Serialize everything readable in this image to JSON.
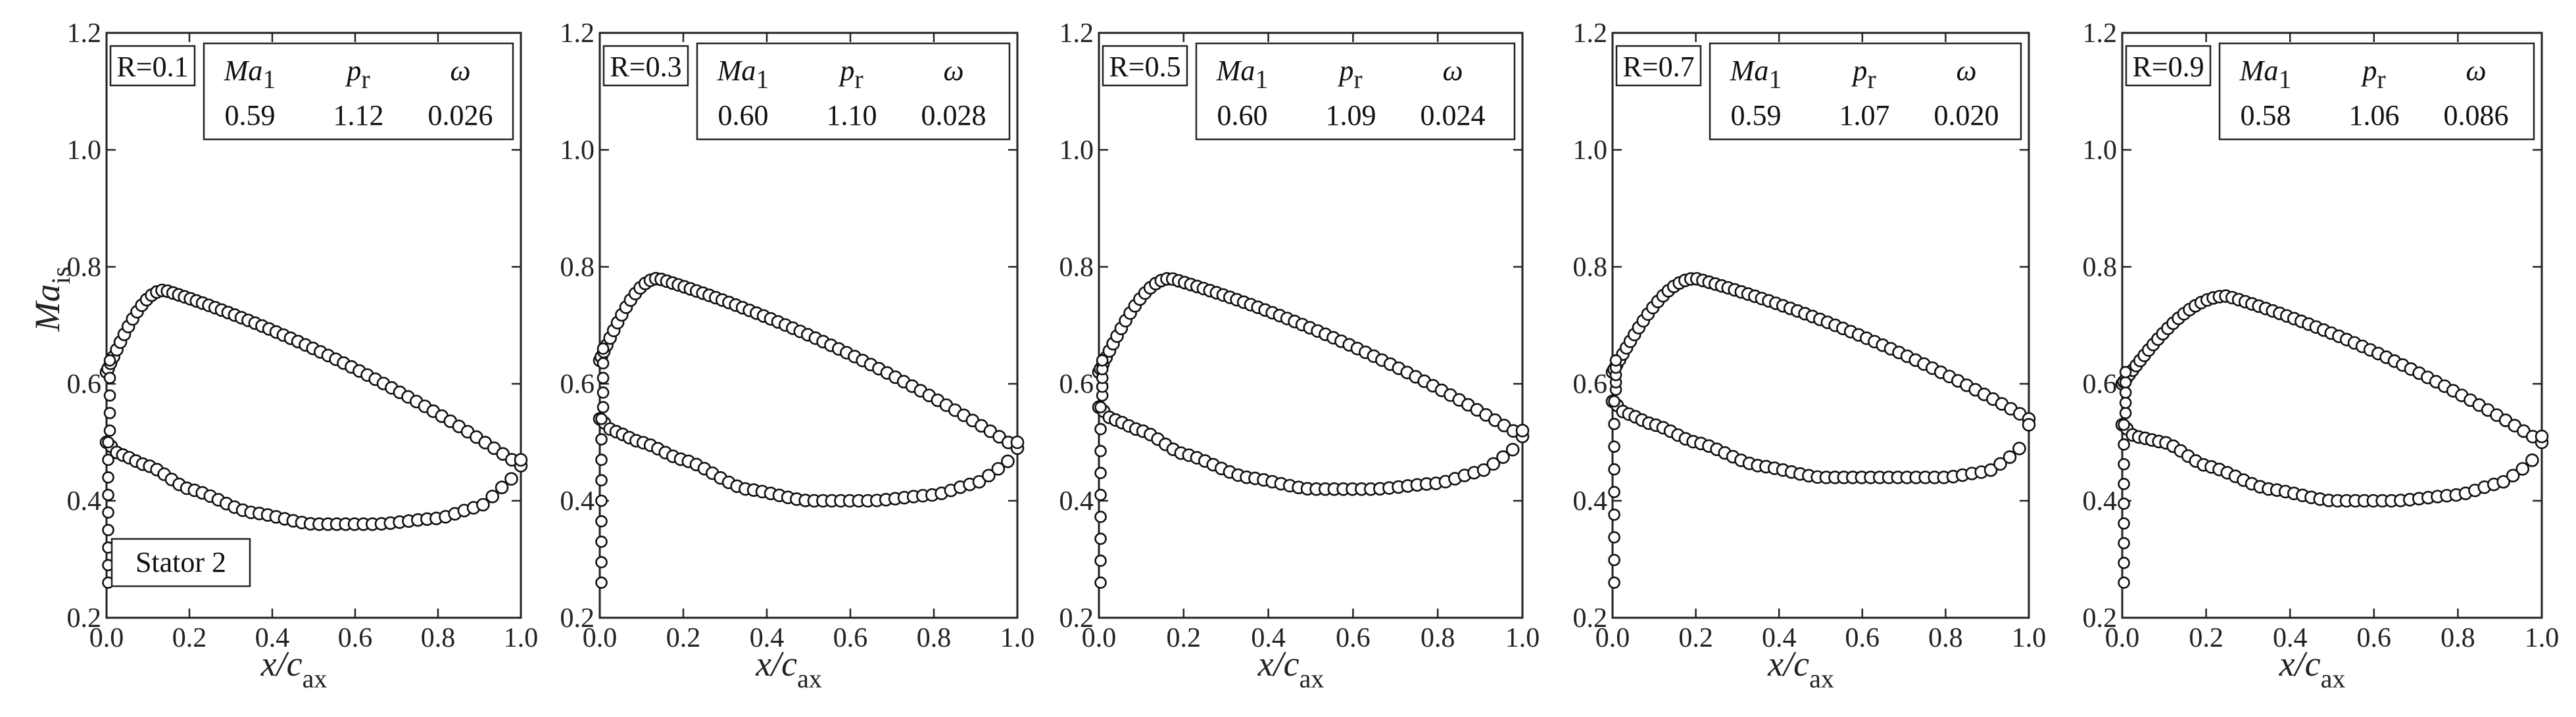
{
  "chart_data": [
    {
      "type": "scatter",
      "title": "R=0.1",
      "annotation": "Stator 2",
      "xlabel": "x/c_ax",
      "ylabel": "Ma_is",
      "xlim": [
        0.0,
        1.0
      ],
      "ylim": [
        0.2,
        1.2
      ],
      "xticks": [
        "0.0",
        "0.2",
        "0.4",
        "0.6",
        "0.8",
        "1.0"
      ],
      "yticks": [
        "0.2",
        "0.4",
        "0.6",
        "0.8",
        "1.0",
        "1.2"
      ],
      "table": {
        "headers": [
          "Ma1",
          "pr",
          "ω"
        ],
        "values": [
          "0.59",
          "1.12",
          "0.026"
        ]
      },
      "suction_peak": [
        0.14,
        0.76
      ],
      "suction_le": 0.62,
      "suction_te": 0.46,
      "pressure": [
        [
          0.0,
          0.5
        ],
        [
          0.03,
          0.48
        ],
        [
          0.1,
          0.46
        ],
        [
          0.2,
          0.42
        ],
        [
          0.35,
          0.38
        ],
        [
          0.5,
          0.36
        ],
        [
          0.65,
          0.36
        ],
        [
          0.8,
          0.37
        ],
        [
          0.9,
          0.39
        ],
        [
          0.97,
          0.43
        ],
        [
          1.0,
          0.47
        ]
      ]
    },
    {
      "type": "scatter",
      "title": "R=0.3",
      "xlabel": "x/c_ax",
      "ylabel": "",
      "xlim": [
        0.0,
        1.0
      ],
      "ylim": [
        0.2,
        1.2
      ],
      "xticks": [
        "0.0",
        "0.2",
        "0.4",
        "0.6",
        "0.8",
        "1.0"
      ],
      "yticks": [
        "0.2",
        "0.4",
        "0.6",
        "0.8",
        "1.0",
        "1.2"
      ],
      "table": {
        "headers": [
          "Ma1",
          "pr",
          "ω"
        ],
        "values": [
          "0.60",
          "1.10",
          "0.028"
        ]
      },
      "suction_peak": [
        0.14,
        0.78
      ],
      "suction_le": 0.64,
      "suction_te": 0.49,
      "pressure": [
        [
          0.0,
          0.54
        ],
        [
          0.03,
          0.52
        ],
        [
          0.1,
          0.5
        ],
        [
          0.2,
          0.47
        ],
        [
          0.35,
          0.42
        ],
        [
          0.5,
          0.4
        ],
        [
          0.65,
          0.4
        ],
        [
          0.8,
          0.41
        ],
        [
          0.9,
          0.43
        ],
        [
          0.97,
          0.46
        ],
        [
          1.0,
          0.5
        ]
      ]
    },
    {
      "type": "scatter",
      "title": "R=0.5",
      "xlabel": "x/c_ax",
      "ylabel": "",
      "xlim": [
        0.0,
        1.0
      ],
      "ylim": [
        0.2,
        1.2
      ],
      "xticks": [
        "0.0",
        "0.2",
        "0.4",
        "0.6",
        "0.8",
        "1.0"
      ],
      "yticks": [
        "0.2",
        "0.4",
        "0.6",
        "0.8",
        "1.0",
        "1.2"
      ],
      "table": {
        "headers": [
          "Ma1",
          "pr",
          "ω"
        ],
        "values": [
          "0.60",
          "1.09",
          "0.024"
        ]
      },
      "suction_peak": [
        0.17,
        0.78
      ],
      "suction_le": 0.62,
      "suction_te": 0.51,
      "pressure": [
        [
          0.0,
          0.56
        ],
        [
          0.03,
          0.54
        ],
        [
          0.1,
          0.52
        ],
        [
          0.2,
          0.48
        ],
        [
          0.35,
          0.44
        ],
        [
          0.5,
          0.42
        ],
        [
          0.65,
          0.42
        ],
        [
          0.8,
          0.43
        ],
        [
          0.9,
          0.45
        ],
        [
          0.97,
          0.48
        ],
        [
          1.0,
          0.52
        ]
      ]
    },
    {
      "type": "scatter",
      "title": "R=0.7",
      "xlabel": "x/c_ax",
      "ylabel": "",
      "xlim": [
        0.0,
        1.0
      ],
      "ylim": [
        0.2,
        1.2
      ],
      "xticks": [
        "0.0",
        "0.2",
        "0.4",
        "0.6",
        "0.8",
        "1.0"
      ],
      "yticks": [
        "0.2",
        "0.4",
        "0.6",
        "0.8",
        "1.0",
        "1.2"
      ],
      "table": {
        "headers": [
          "Ma1",
          "pr",
          "ω"
        ],
        "values": [
          "0.59",
          "1.07",
          "0.020"
        ]
      },
      "suction_peak": [
        0.2,
        0.78
      ],
      "suction_le": 0.62,
      "suction_te": 0.54,
      "pressure": [
        [
          0.0,
          0.57
        ],
        [
          0.03,
          0.55
        ],
        [
          0.1,
          0.53
        ],
        [
          0.2,
          0.5
        ],
        [
          0.35,
          0.46
        ],
        [
          0.5,
          0.44
        ],
        [
          0.65,
          0.44
        ],
        [
          0.8,
          0.44
        ],
        [
          0.9,
          0.45
        ],
        [
          0.97,
          0.48
        ],
        [
          1.0,
          0.53
        ]
      ]
    },
    {
      "type": "scatter",
      "title": "R=0.9",
      "xlabel": "x/c_ax",
      "ylabel": "",
      "xlim": [
        0.0,
        1.0
      ],
      "ylim": [
        0.2,
        1.2
      ],
      "xticks": [
        "0.0",
        "0.2",
        "0.4",
        "0.6",
        "0.8",
        "1.0"
      ],
      "yticks": [
        "0.2",
        "0.4",
        "0.6",
        "0.8",
        "1.0",
        "1.2"
      ],
      "table": {
        "headers": [
          "Ma1",
          "pr",
          "ω"
        ],
        "values": [
          "0.58",
          "1.06",
          "0.086"
        ]
      },
      "suction_peak": [
        0.25,
        0.75
      ],
      "suction_le": 0.6,
      "suction_te": 0.5,
      "pressure": [
        [
          0.0,
          0.53
        ],
        [
          0.03,
          0.51
        ],
        [
          0.1,
          0.5
        ],
        [
          0.2,
          0.46
        ],
        [
          0.35,
          0.42
        ],
        [
          0.5,
          0.4
        ],
        [
          0.65,
          0.4
        ],
        [
          0.8,
          0.41
        ],
        [
          0.9,
          0.43
        ],
        [
          0.97,
          0.46
        ],
        [
          1.0,
          0.51
        ]
      ]
    }
  ]
}
